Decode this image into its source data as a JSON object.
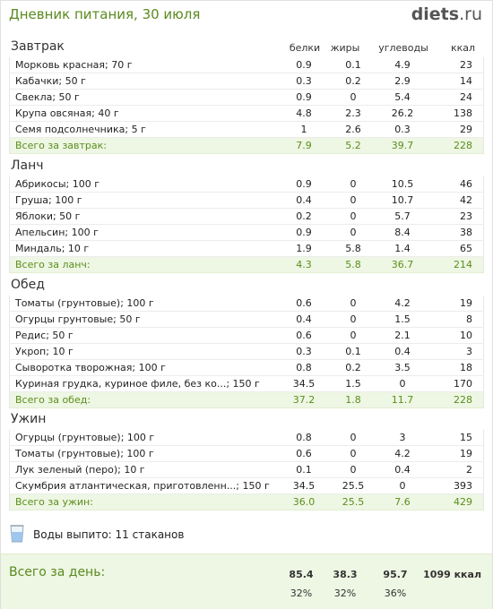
{
  "header": {
    "title": "Дневник питания, 30 июля",
    "logo_main": "diets",
    "logo_tld": ".ru"
  },
  "columns": {
    "protein": "белки",
    "fat": "жиры",
    "carbs": "углеводы",
    "kcal": "ккал"
  },
  "meals": [
    {
      "name": "Завтрак",
      "rows": [
        {
          "name": "Морковь красная; 70 г",
          "p": "0.9",
          "f": "0.1",
          "c": "4.9",
          "k": "23"
        },
        {
          "name": "Кабачки; 50 г",
          "p": "0.3",
          "f": "0.2",
          "c": "2.9",
          "k": "14"
        },
        {
          "name": "Свекла; 50 г",
          "p": "0.9",
          "f": "0",
          "c": "5.4",
          "k": "24"
        },
        {
          "name": "Крупа овсяная; 40 г",
          "p": "4.8",
          "f": "2.3",
          "c": "26.2",
          "k": "138"
        },
        {
          "name": "Семя подсолнечника; 5 г",
          "p": "1",
          "f": "2.6",
          "c": "0.3",
          "k": "29"
        }
      ],
      "total": {
        "name": "Всего за завтрак:",
        "p": "7.9",
        "f": "5.2",
        "c": "39.7",
        "k": "228"
      }
    },
    {
      "name": "Ланч",
      "rows": [
        {
          "name": "Абрикосы; 100 г",
          "p": "0.9",
          "f": "0",
          "c": "10.5",
          "k": "46"
        },
        {
          "name": "Груша; 100 г",
          "p": "0.4",
          "f": "0",
          "c": "10.7",
          "k": "42"
        },
        {
          "name": "Яблоки; 50 г",
          "p": "0.2",
          "f": "0",
          "c": "5.7",
          "k": "23"
        },
        {
          "name": "Апельсин; 100 г",
          "p": "0.9",
          "f": "0",
          "c": "8.4",
          "k": "38"
        },
        {
          "name": "Миндаль; 10 г",
          "p": "1.9",
          "f": "5.8",
          "c": "1.4",
          "k": "65"
        }
      ],
      "total": {
        "name": "Всего за ланч:",
        "p": "4.3",
        "f": "5.8",
        "c": "36.7",
        "k": "214"
      }
    },
    {
      "name": "Обед",
      "rows": [
        {
          "name": "Томаты (грунтовые); 100 г",
          "p": "0.6",
          "f": "0",
          "c": "4.2",
          "k": "19"
        },
        {
          "name": "Огурцы грунтовые; 50 г",
          "p": "0.4",
          "f": "0",
          "c": "1.5",
          "k": "8"
        },
        {
          "name": "Редис; 50 г",
          "p": "0.6",
          "f": "0",
          "c": "2.1",
          "k": "10"
        },
        {
          "name": "Укроп; 10 г",
          "p": "0.3",
          "f": "0.1",
          "c": "0.4",
          "k": "3"
        },
        {
          "name": "Сыворотка творожная; 100 г",
          "p": "0.8",
          "f": "0.2",
          "c": "3.5",
          "k": "18"
        },
        {
          "name": "Куриная грудка, куриное филе, без ко...; 150 г",
          "p": "34.5",
          "f": "1.5",
          "c": "0",
          "k": "170"
        }
      ],
      "total": {
        "name": "Всего за обед:",
        "p": "37.2",
        "f": "1.8",
        "c": "11.7",
        "k": "228"
      }
    },
    {
      "name": "Ужин",
      "rows": [
        {
          "name": "Огурцы (грунтовые); 100 г",
          "p": "0.8",
          "f": "0",
          "c": "3",
          "k": "15"
        },
        {
          "name": "Томаты (грунтовые); 100 г",
          "p": "0.6",
          "f": "0",
          "c": "4.2",
          "k": "19"
        },
        {
          "name": "Лук зеленый (перо); 10 г",
          "p": "0.1",
          "f": "0",
          "c": "0.4",
          "k": "2"
        },
        {
          "name": "Скумбрия атлантическая, приготовленн...; 150 г",
          "p": "34.5",
          "f": "25.5",
          "c": "0",
          "k": "393"
        }
      ],
      "total": {
        "name": "Всего за ужин:",
        "p": "36.0",
        "f": "25.5",
        "c": "7.6",
        "k": "429"
      }
    }
  ],
  "water": {
    "icon": "water-glass-icon",
    "text": "Воды выпито: 11 стаканов"
  },
  "day_total": {
    "label": "Всего за день:",
    "protein": "85.4",
    "fat": "38.3",
    "carbs": "95.7",
    "kcal": "1099 ккал",
    "protein_pct": "32%",
    "fat_pct": "32%",
    "carbs_pct": "36%"
  },
  "colors": {
    "accent_green": "#5a8a1e",
    "total_bg": "#eef6e4"
  }
}
